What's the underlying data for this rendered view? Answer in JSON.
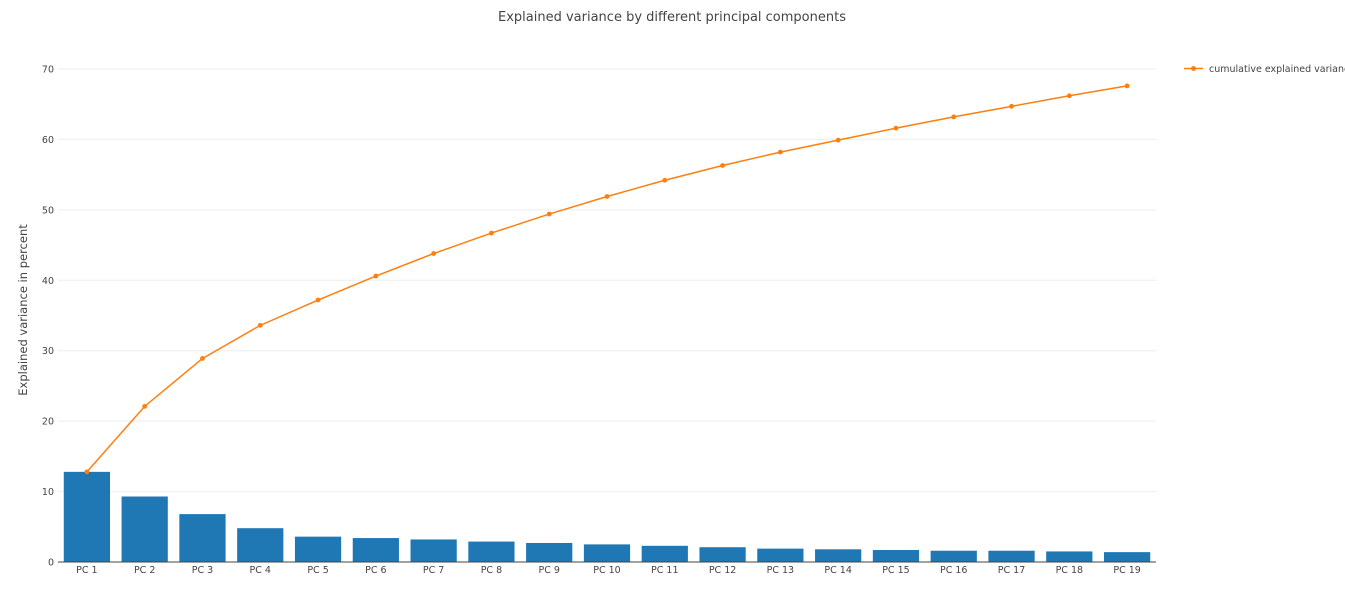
{
  "chart_data": {
    "type": "bar",
    "title": "Explained variance by different principal components",
    "xlabel": "",
    "ylabel": "Explained variance in percent",
    "ylim": [
      0,
      70
    ],
    "yticks": [
      0,
      10,
      20,
      30,
      40,
      50,
      60,
      70
    ],
    "grid": true,
    "legend_position": "top-right",
    "categories": [
      "PC 1",
      "PC 2",
      "PC 3",
      "PC 4",
      "PC 5",
      "PC 6",
      "PC 7",
      "PC 8",
      "PC 9",
      "PC 10",
      "PC 11",
      "PC 12",
      "PC 13",
      "PC 14",
      "PC 15",
      "PC 16",
      "PC 17",
      "PC 18",
      "PC 19"
    ],
    "series": [
      {
        "type": "bar",
        "color": "#1f77b4",
        "values": [
          12.8,
          9.3,
          6.8,
          4.8,
          3.6,
          3.4,
          3.2,
          2.9,
          2.7,
          2.5,
          2.3,
          2.1,
          1.9,
          1.8,
          1.7,
          1.6,
          1.6,
          1.5,
          1.4
        ]
      },
      {
        "type": "line",
        "name": "cumulative explained variance",
        "color": "#ff7f0e",
        "values": [
          12.8,
          22.1,
          28.9,
          33.6,
          37.2,
          40.6,
          43.8,
          46.7,
          49.4,
          51.9,
          54.2,
          56.3,
          58.2,
          59.9,
          61.6,
          63.2,
          64.7,
          66.2,
          67.6
        ]
      }
    ]
  }
}
